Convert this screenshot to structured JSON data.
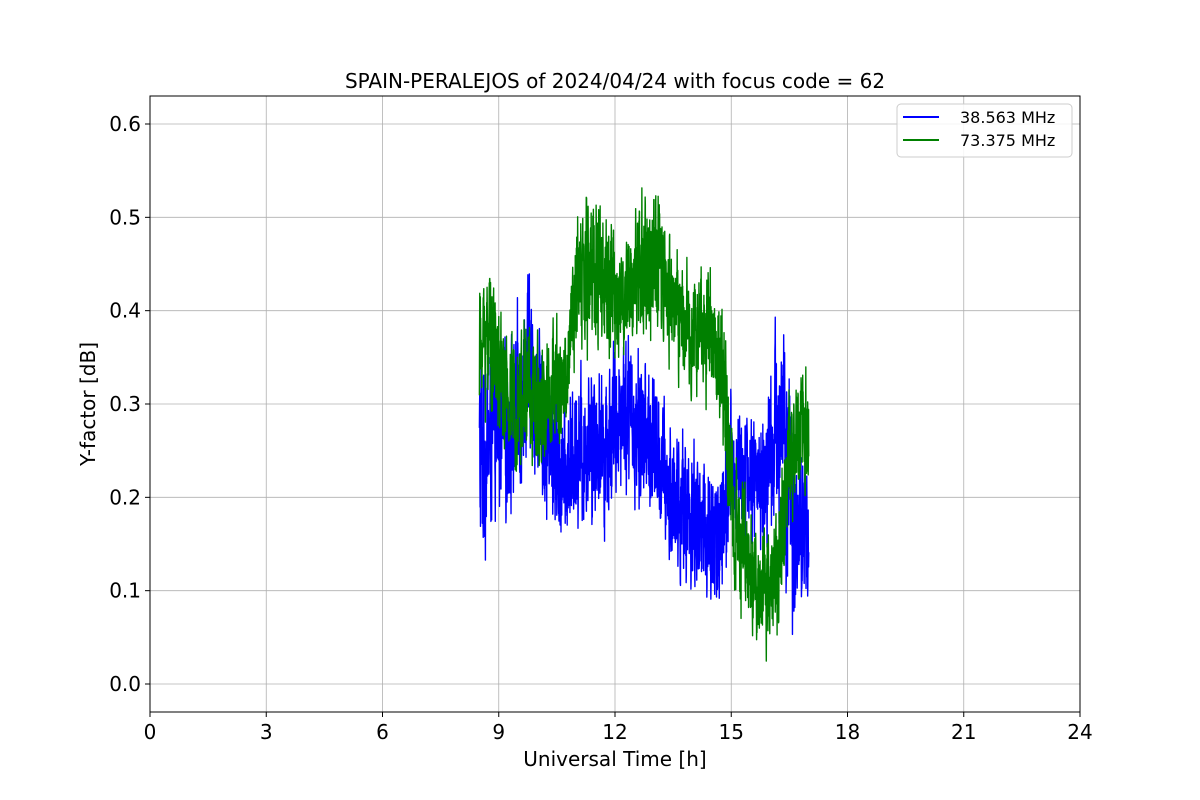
{
  "chart_data": {
    "type": "line",
    "title": "SPAIN-PERALEJOS of 2024/04/24 with focus code = 62",
    "xlabel": "Universal Time [h]",
    "ylabel": "Y-factor [dB]",
    "xlim": [
      0,
      24
    ],
    "ylim": [
      -0.03,
      0.63
    ],
    "xticks": [
      0,
      3,
      6,
      9,
      12,
      15,
      18,
      21,
      24
    ],
    "yticks": [
      0.0,
      0.1,
      0.2,
      0.3,
      0.4,
      0.5,
      0.6
    ],
    "xtick_labels": [
      "0",
      "3",
      "6",
      "9",
      "12",
      "15",
      "18",
      "21",
      "24"
    ],
    "ytick_labels": [
      "0.0",
      "0.1",
      "0.2",
      "0.3",
      "0.4",
      "0.5",
      "0.6"
    ],
    "grid": true,
    "legend_position": "top-right",
    "series": [
      {
        "name": "38.563 MHz",
        "color": "#0000ff",
        "x": [
          8.5,
          8.75,
          9.0,
          9.25,
          9.5,
          9.75,
          10.0,
          10.25,
          10.5,
          10.75,
          11.0,
          11.25,
          11.5,
          11.75,
          12.0,
          12.25,
          12.5,
          12.75,
          13.0,
          13.25,
          13.5,
          13.75,
          14.0,
          14.25,
          14.5,
          14.75,
          15.0,
          15.25,
          15.5,
          15.75,
          16.0,
          16.25,
          16.5,
          16.75,
          17.0
        ],
        "y": [
          0.24,
          0.26,
          0.27,
          0.27,
          0.3,
          0.34,
          0.3,
          0.26,
          0.24,
          0.22,
          0.25,
          0.26,
          0.27,
          0.25,
          0.28,
          0.3,
          0.28,
          0.27,
          0.25,
          0.22,
          0.2,
          0.19,
          0.18,
          0.17,
          0.16,
          0.15,
          0.22,
          0.24,
          0.22,
          0.22,
          0.23,
          0.3,
          0.2,
          0.16,
          0.17
        ],
        "spread": [
          0.15,
          0.11,
          0.1,
          0.1,
          0.12,
          0.11,
          0.1,
          0.1,
          0.1,
          0.09,
          0.1,
          0.1,
          0.1,
          0.1,
          0.1,
          0.1,
          0.1,
          0.1,
          0.1,
          0.09,
          0.1,
          0.09,
          0.1,
          0.1,
          0.1,
          0.1,
          0.1,
          0.08,
          0.08,
          0.09,
          0.1,
          0.15,
          0.15,
          0.1,
          0.1
        ]
      },
      {
        "name": "73.375 MHz",
        "color": "#008000",
        "x": [
          8.5,
          8.75,
          9.0,
          9.25,
          9.5,
          9.75,
          10.0,
          10.25,
          10.5,
          10.75,
          11.0,
          11.25,
          11.5,
          11.75,
          12.0,
          12.25,
          12.5,
          12.75,
          13.0,
          13.25,
          13.5,
          13.75,
          14.0,
          14.25,
          14.5,
          14.75,
          15.0,
          15.25,
          15.5,
          15.75,
          16.0,
          16.25,
          16.5,
          16.75,
          17.0
        ],
        "y": [
          0.36,
          0.38,
          0.33,
          0.3,
          0.31,
          0.32,
          0.3,
          0.31,
          0.32,
          0.33,
          0.42,
          0.44,
          0.45,
          0.43,
          0.41,
          0.42,
          0.43,
          0.44,
          0.45,
          0.43,
          0.41,
          0.39,
          0.38,
          0.38,
          0.37,
          0.35,
          0.2,
          0.15,
          0.12,
          0.1,
          0.1,
          0.14,
          0.24,
          0.26,
          0.27
        ],
        "spread": [
          0.08,
          0.1,
          0.09,
          0.08,
          0.08,
          0.1,
          0.08,
          0.08,
          0.08,
          0.08,
          0.1,
          0.1,
          0.12,
          0.1,
          0.08,
          0.08,
          0.08,
          0.1,
          0.11,
          0.1,
          0.09,
          0.08,
          0.07,
          0.08,
          0.08,
          0.08,
          0.1,
          0.09,
          0.08,
          0.08,
          0.08,
          0.09,
          0.1,
          0.08,
          0.08
        ]
      }
    ]
  }
}
